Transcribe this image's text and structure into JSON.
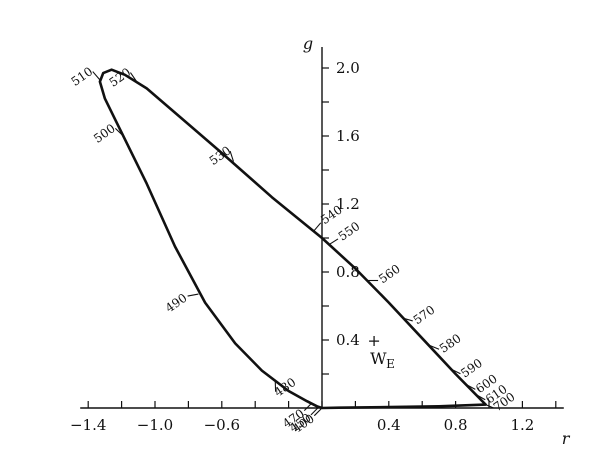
{
  "chart_data": {
    "type": "line",
    "title": "",
    "xlabel": "r",
    "ylabel": "g",
    "xlim": [
      -1.4,
      1.4
    ],
    "ylim": [
      0.0,
      2.1
    ],
    "grid": false,
    "x_ticks": [
      -1.4,
      -1.2,
      -1.0,
      -0.8,
      -0.6,
      -0.4,
      -0.2,
      0.0,
      0.2,
      0.4,
      0.6,
      0.8,
      1.0,
      1.2,
      1.4
    ],
    "x_tick_labels": [
      {
        "value": -1.4,
        "label": "−1.4"
      },
      {
        "value": -1.0,
        "label": "−1.0"
      },
      {
        "value": -0.6,
        "label": "−0.6"
      },
      {
        "value": 0.4,
        "label": "0.4"
      },
      {
        "value": 0.8,
        "label": "0.8"
      },
      {
        "value": 1.2,
        "label": "1.2"
      }
    ],
    "y_ticks": [
      0.0,
      0.2,
      0.4,
      0.6,
      0.8,
      1.0,
      1.2,
      1.4,
      1.6,
      1.8,
      2.0
    ],
    "y_tick_labels": [
      {
        "value": 0.4,
        "label": "0.4"
      },
      {
        "value": 0.8,
        "label": "0.8"
      },
      {
        "value": 1.2,
        "label": "1.2"
      },
      {
        "value": 1.6,
        "label": "1.6"
      },
      {
        "value": 2.0,
        "label": "2.0"
      }
    ],
    "series": [
      {
        "points": [
          [
            0.0,
            0.0
          ],
          [
            -0.03,
            0.01
          ],
          [
            -0.09,
            0.04
          ],
          [
            -0.2,
            0.1
          ],
          [
            -0.36,
            0.22
          ],
          [
            -0.52,
            0.38
          ],
          [
            -0.7,
            0.62
          ],
          [
            -0.88,
            0.95
          ],
          [
            -1.05,
            1.32
          ],
          [
            -1.2,
            1.62
          ],
          [
            -1.3,
            1.82
          ],
          [
            -1.33,
            1.92
          ],
          [
            -1.31,
            1.97
          ],
          [
            -1.26,
            1.99
          ],
          [
            -1.18,
            1.96
          ],
          [
            -1.05,
            1.88
          ],
          [
            -0.86,
            1.72
          ],
          [
            -0.6,
            1.5
          ],
          [
            -0.3,
            1.24
          ],
          [
            0.0,
            1.0
          ],
          [
            0.2,
            0.82
          ],
          [
            0.4,
            0.62
          ],
          [
            0.6,
            0.41
          ],
          [
            0.8,
            0.2
          ],
          [
            0.98,
            0.02
          ],
          [
            0.7,
            0.01
          ],
          [
            0.4,
            0.005
          ],
          [
            0.1,
            0.002
          ],
          [
            0.0,
            0.0
          ]
        ]
      }
    ],
    "wavelength_labels": [
      {
        "label": "400",
        "r": 0.0,
        "g": 0.0
      },
      {
        "label": "450",
        "r": -0.02,
        "g": 0.005
      },
      {
        "label": "470",
        "r": -0.06,
        "g": 0.03
      },
      {
        "label": "480",
        "r": -0.28,
        "g": 0.16
      },
      {
        "label": "490",
        "r": -0.74,
        "g": 0.67
      },
      {
        "label": "500",
        "r": -1.19,
        "g": 1.6
      },
      {
        "label": "510",
        "r": -1.33,
        "g": 1.93
      },
      {
        "label": "520",
        "r": -1.11,
        "g": 1.92
      },
      {
        "label": "530",
        "r": -0.53,
        "g": 1.45
      },
      {
        "label": "540",
        "r": -0.05,
        "g": 1.04
      },
      {
        "label": "550",
        "r": 0.04,
        "g": 0.96
      },
      {
        "label": "560",
        "r": 0.27,
        "g": 0.75
      },
      {
        "label": "570",
        "r": 0.48,
        "g": 0.53
      },
      {
        "label": "580",
        "r": 0.64,
        "g": 0.37
      },
      {
        "label": "590",
        "r": 0.77,
        "g": 0.23
      },
      {
        "label": "600",
        "r": 0.86,
        "g": 0.14
      },
      {
        "label": "610",
        "r": 0.92,
        "g": 0.08
      },
      {
        "label": "700",
        "r": 0.98,
        "g": 0.02
      }
    ],
    "annotations": [
      {
        "type": "white-point",
        "symbol": "+",
        "label": "W",
        "subscript": "E",
        "r": 0.33,
        "g": 0.33
      }
    ]
  }
}
